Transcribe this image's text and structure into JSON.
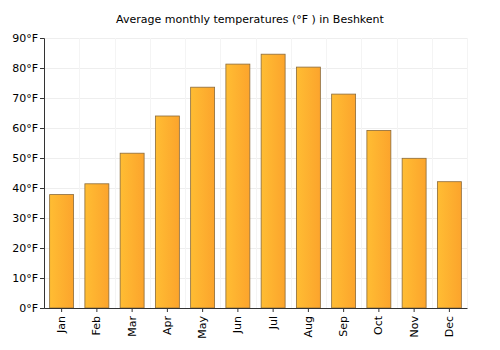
{
  "chart_data": {
    "type": "bar",
    "title": "Average monthly temperatures (°F ) in Beshkent",
    "categories": [
      "Jan",
      "Feb",
      "Mar",
      "Apr",
      "May",
      "Jun",
      "Jul",
      "Aug",
      "Sep",
      "Oct",
      "Nov",
      "Dec"
    ],
    "values": [
      37.8,
      41.4,
      51.6,
      64.0,
      73.6,
      81.3,
      84.6,
      80.3,
      71.3,
      59.2,
      49.9,
      42.1
    ],
    "color": "#fca42c",
    "ylim": [
      0,
      90
    ],
    "yticks": [
      {
        "value": 0,
        "label": "0°F"
      },
      {
        "value": 10,
        "label": "10°F"
      },
      {
        "value": 20,
        "label": "20°F"
      },
      {
        "value": 30,
        "label": "30°F"
      },
      {
        "value": 40,
        "label": "40°F"
      },
      {
        "value": 50,
        "label": "50°F"
      },
      {
        "value": 60,
        "label": "60°F"
      },
      {
        "value": 70,
        "label": "70°F"
      },
      {
        "value": 80,
        "label": "80°F"
      },
      {
        "value": 90,
        "label": "90°F"
      }
    ],
    "grid": true
  }
}
